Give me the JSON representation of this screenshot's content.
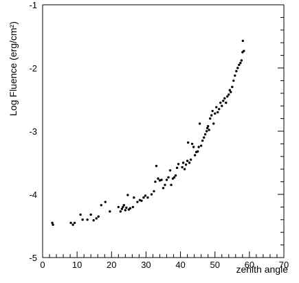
{
  "chart_data": {
    "type": "scatter",
    "title": "",
    "xlabel": "zenith angle",
    "ylabel": "Log Fluence (erg/cm²)",
    "xlim": [
      0,
      70
    ],
    "ylim": [
      -5,
      -1
    ],
    "xticks": [
      0,
      10,
      20,
      30,
      40,
      50,
      60,
      70
    ],
    "yticks": [
      -5,
      -4,
      -3,
      -2,
      -1
    ],
    "grid": false,
    "legend": "none",
    "series": [
      {
        "points": [
          [
            2.8,
            -4.45
          ],
          [
            3.0,
            -4.48
          ],
          [
            8.2,
            -4.45
          ],
          [
            8.8,
            -4.48
          ],
          [
            9.3,
            -4.45
          ],
          [
            11.0,
            -4.32
          ],
          [
            11.6,
            -4.4
          ],
          [
            13.0,
            -4.4
          ],
          [
            14.0,
            -4.32
          ],
          [
            14.8,
            -4.41
          ],
          [
            15.6,
            -4.38
          ],
          [
            16.2,
            -4.35
          ],
          [
            17.0,
            -4.17
          ],
          [
            18.2,
            -4.12
          ],
          [
            19.5,
            -4.27
          ],
          [
            22.0,
            -4.2
          ],
          [
            22.6,
            -4.27
          ],
          [
            23.0,
            -4.23
          ],
          [
            23.3,
            -4.2
          ],
          [
            23.6,
            -4.17
          ],
          [
            24.0,
            -4.25
          ],
          [
            24.3,
            -4.21
          ],
          [
            24.7,
            -4.01
          ],
          [
            25.0,
            -4.24
          ],
          [
            25.4,
            -4.22
          ],
          [
            26.2,
            -4.2
          ],
          [
            26.5,
            -4.05
          ],
          [
            27.5,
            -4.12
          ],
          [
            28.2,
            -4.09
          ],
          [
            28.7,
            -4.1
          ],
          [
            29.3,
            -4.05
          ],
          [
            29.8,
            -4.02
          ],
          [
            30.5,
            -4.05
          ],
          [
            31.6,
            -4.0
          ],
          [
            32.3,
            -3.95
          ],
          [
            32.7,
            -3.8
          ],
          [
            33.0,
            -3.55
          ],
          [
            33.5,
            -3.75
          ],
          [
            34.0,
            -3.78
          ],
          [
            34.5,
            -3.77
          ],
          [
            35.0,
            -3.9
          ],
          [
            35.5,
            -3.85
          ],
          [
            36.0,
            -3.77
          ],
          [
            36.5,
            -3.73
          ],
          [
            37.0,
            -3.62
          ],
          [
            37.3,
            -3.85
          ],
          [
            37.8,
            -3.75
          ],
          [
            38.2,
            -3.73
          ],
          [
            38.6,
            -3.7
          ],
          [
            39.0,
            -3.58
          ],
          [
            39.4,
            -3.52
          ],
          [
            40.5,
            -3.57
          ],
          [
            40.8,
            -3.5
          ],
          [
            41.2,
            -3.6
          ],
          [
            41.6,
            -3.53
          ],
          [
            42.0,
            -3.47
          ],
          [
            42.2,
            -3.18
          ],
          [
            42.6,
            -3.5
          ],
          [
            43.0,
            -3.45
          ],
          [
            43.4,
            -3.2
          ],
          [
            43.8,
            -3.25
          ],
          [
            44.2,
            -3.38
          ],
          [
            44.6,
            -3.33
          ],
          [
            45.0,
            -3.32
          ],
          [
            45.3,
            -3.25
          ],
          [
            45.6,
            -2.88
          ],
          [
            46.0,
            -3.23
          ],
          [
            46.4,
            -3.15
          ],
          [
            46.8,
            -3.1
          ],
          [
            47.2,
            -3.05
          ],
          [
            47.6,
            -3.0
          ],
          [
            47.8,
            -2.95
          ],
          [
            48.0,
            -2.92
          ],
          [
            48.3,
            -2.98
          ],
          [
            48.6,
            -2.8
          ],
          [
            49.0,
            -2.75
          ],
          [
            49.3,
            -2.68
          ],
          [
            49.6,
            -2.88
          ],
          [
            50.0,
            -2.72
          ],
          [
            50.4,
            -2.62
          ],
          [
            50.8,
            -2.7
          ],
          [
            51.2,
            -2.65
          ],
          [
            51.6,
            -2.55
          ],
          [
            52.0,
            -2.6
          ],
          [
            52.4,
            -2.52
          ],
          [
            52.8,
            -2.48
          ],
          [
            53.2,
            -2.55
          ],
          [
            53.6,
            -2.45
          ],
          [
            54.0,
            -2.42
          ],
          [
            54.3,
            -2.35
          ],
          [
            54.6,
            -2.38
          ],
          [
            55.0,
            -2.3
          ],
          [
            55.4,
            -2.2
          ],
          [
            55.8,
            -2.12
          ],
          [
            56.2,
            -2.05
          ],
          [
            56.6,
            -2.0
          ],
          [
            57.0,
            -1.95
          ],
          [
            57.4,
            -1.92
          ],
          [
            57.7,
            -1.88
          ],
          [
            58.0,
            -1.75
          ],
          [
            58.1,
            -1.57
          ],
          [
            58.4,
            -1.73
          ]
        ]
      }
    ]
  }
}
